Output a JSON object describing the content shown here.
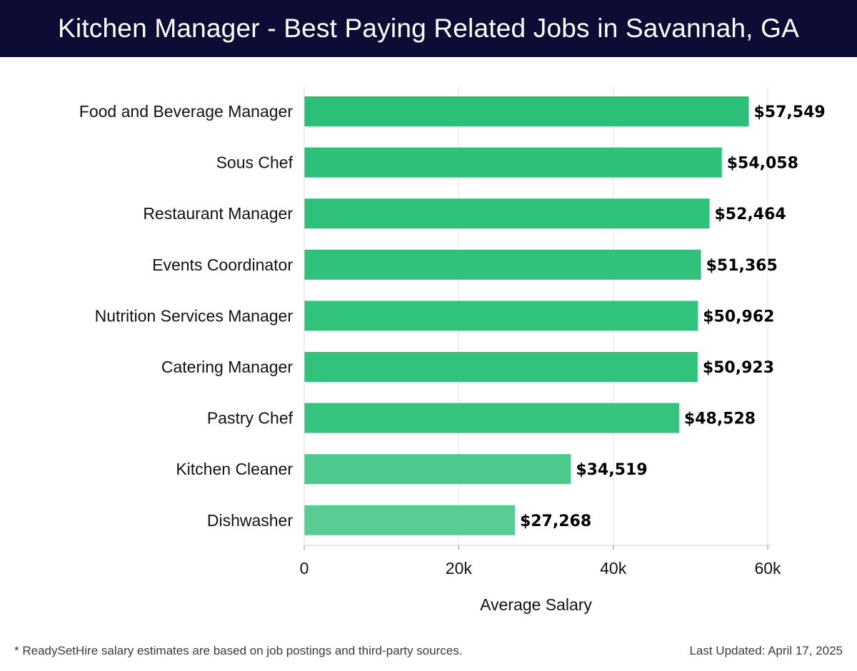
{
  "header": {
    "title": "Kitchen Manager - Best Paying Related Jobs in Savannah, GA"
  },
  "footer": {
    "note": "* ReadySetHire salary estimates are based on job postings and third-party sources.",
    "updated": "Last Updated: April 17, 2025"
  },
  "chart_data": {
    "type": "bar",
    "orientation": "horizontal",
    "title": "Kitchen Manager - Best Paying Related Jobs in Savannah, GA",
    "xlabel": "Average Salary",
    "ylabel": "",
    "xlim": [
      0,
      60000
    ],
    "grid": "vertical",
    "x_ticks": [
      0,
      20000,
      40000,
      60000
    ],
    "x_tick_labels": [
      "0",
      "20k",
      "40k",
      "60k"
    ],
    "categories": [
      "Food and Beverage Manager",
      "Sous Chef",
      "Restaurant Manager",
      "Events Coordinator",
      "Nutrition Services Manager",
      "Catering Manager",
      "Pastry Chef",
      "Kitchen Cleaner",
      "Dishwasher"
    ],
    "values": [
      57549,
      54058,
      52464,
      51365,
      50962,
      50923,
      48528,
      34519,
      27268
    ],
    "value_labels": [
      "$57,549",
      "$54,058",
      "$52,464",
      "$51,365",
      "$50,962",
      "$50,923",
      "$48,528",
      "$34,519",
      "$27,268"
    ],
    "bar_colors": [
      "#2bbf77",
      "#2dc079",
      "#2fc17a",
      "#30c17b",
      "#31c27c",
      "#32c27c",
      "#35c37e",
      "#4ec98d",
      "#58cc93"
    ]
  }
}
